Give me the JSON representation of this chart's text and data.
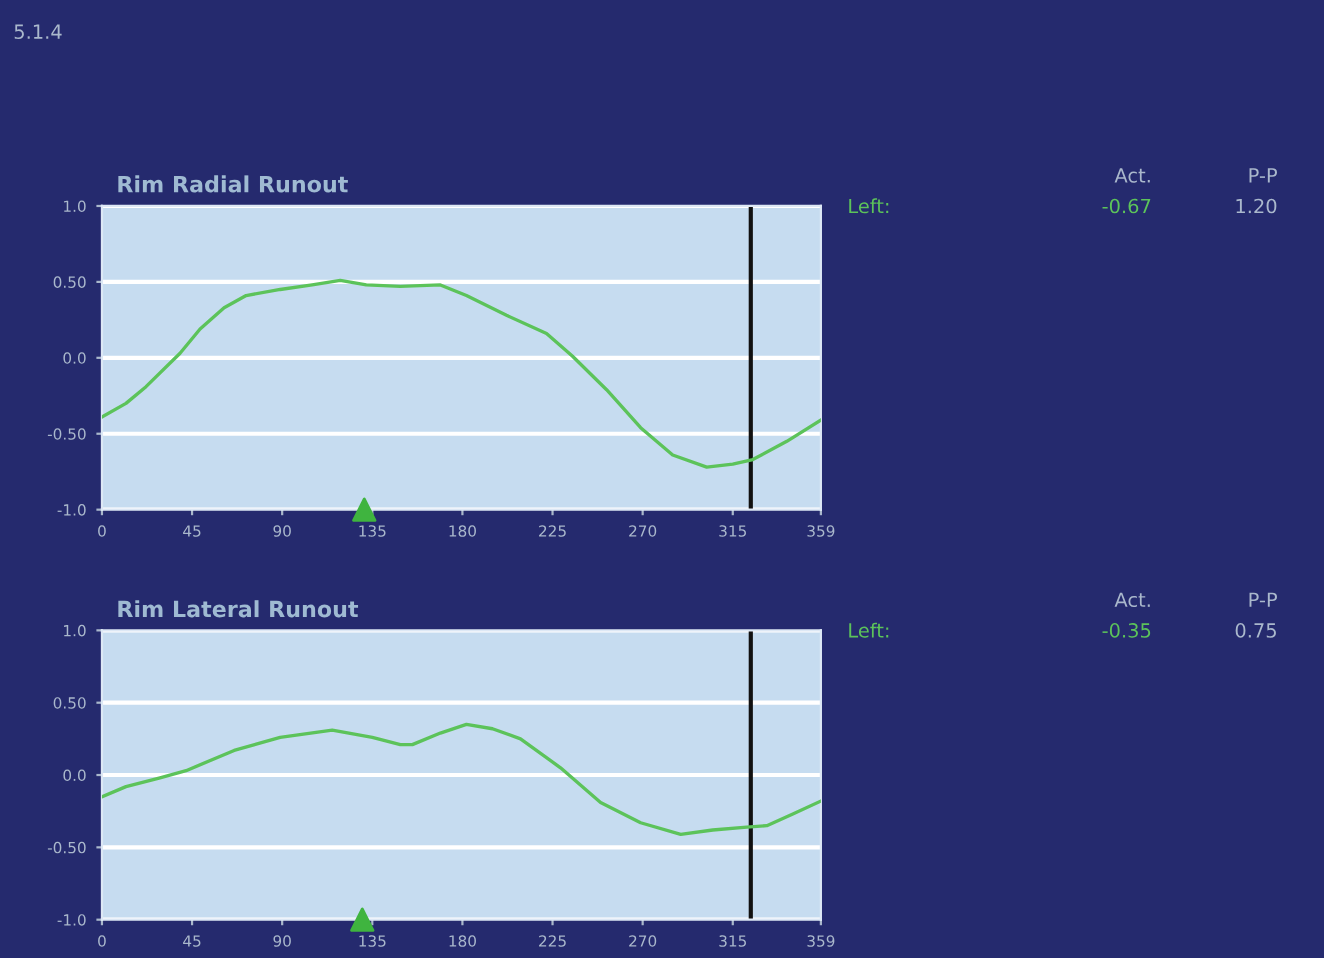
{
  "chart_data": [
    {
      "type": "line",
      "title": "Rim Radial Runout",
      "x": [
        0,
        12,
        22,
        39,
        49,
        61,
        72,
        89,
        105,
        119,
        132,
        149,
        169,
        182,
        202,
        222,
        235,
        252,
        269,
        285,
        302,
        315,
        325,
        342,
        359
      ],
      "series": [
        {
          "color": "#5cc35a",
          "values": [
            -0.39,
            -0.3,
            -0.19,
            0.03,
            0.19,
            0.33,
            0.41,
            0.45,
            0.48,
            0.51,
            0.48,
            0.47,
            0.48,
            0.41,
            0.28,
            0.16,
            0.01,
            -0.21,
            -0.46,
            -0.64,
            -0.72,
            -0.7,
            -0.67,
            -0.55,
            -0.41
          ]
        },
        {
          "type": "scatter",
          "x": [
            131
          ],
          "color": "#3fb43f",
          "marker": "triangle",
          "values": [
            -1.0
          ]
        }
      ],
      "xlim": [
        0,
        359
      ],
      "xticks": [
        0,
        45,
        90,
        135,
        180,
        225,
        270,
        315,
        359
      ],
      "ylim": [
        -1.0,
        1.0
      ],
      "yticks": [
        {
          "value": 1.0,
          "label": "1.0"
        },
        {
          "value": 0.5,
          "label": "0.50"
        },
        {
          "value": 0,
          "label": "0.0"
        },
        {
          "value": -0.5,
          "label": "-0.50"
        },
        {
          "value": -1.0,
          "label": "-1.0"
        }
      ],
      "grid": "y",
      "ref_lines": [
        {
          "axis": "x",
          "value": 324,
          "color": "#111111"
        }
      ],
      "annotations": [
        "Act.",
        "P-P",
        "Left:",
        "-0.67",
        "1.20",
        "5.1.4"
      ]
    },
    {
      "type": "line",
      "title": "Rim Lateral Runout",
      "x": [
        0,
        12,
        29,
        42,
        66,
        89,
        115,
        135,
        149,
        155,
        169,
        182,
        195,
        209,
        229,
        249,
        269,
        289,
        305,
        322,
        332,
        345,
        359
      ],
      "series": [
        {
          "color": "#5cc35a",
          "values": [
            -0.15,
            -0.08,
            -0.02,
            0.03,
            0.17,
            0.26,
            0.31,
            0.26,
            0.21,
            0.21,
            0.29,
            0.35,
            0.32,
            0.25,
            0.05,
            -0.19,
            -0.33,
            -0.41,
            -0.38,
            -0.36,
            -0.35,
            -0.27,
            -0.18
          ]
        },
        {
          "type": "scatter",
          "x": [
            130
          ],
          "color": "#3fb43f",
          "marker": "triangle",
          "values": [
            -1.0
          ]
        }
      ],
      "xlim": [
        0,
        359
      ],
      "xticks": [
        0,
        45,
        90,
        135,
        180,
        225,
        270,
        315,
        359
      ],
      "ylim": [
        -1.0,
        1.0
      ],
      "yticks": [
        {
          "value": 1.0,
          "label": "1.0"
        },
        {
          "value": 0.5,
          "label": "0.50"
        },
        {
          "value": 0,
          "label": "0.0"
        },
        {
          "value": -0.5,
          "label": "-0.50"
        },
        {
          "value": -1.0,
          "label": "-1.0"
        }
      ],
      "grid": "y",
      "ref_lines": [
        {
          "axis": "x",
          "value": 324,
          "color": "#111111"
        }
      ],
      "annotations": [
        "Act.",
        "P-P",
        "Left:",
        "-0.35",
        "0.75"
      ]
    }
  ]
}
